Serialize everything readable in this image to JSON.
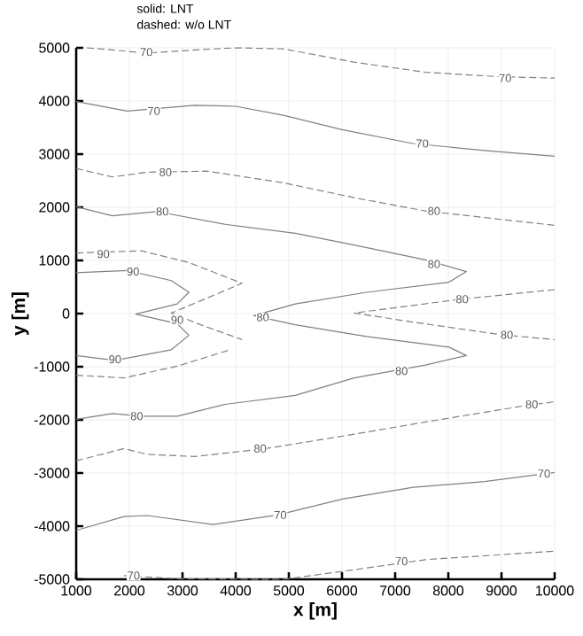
{
  "chart_data": {
    "type": "line",
    "xlabel": "x [m]",
    "ylabel": "y [m]",
    "xlim": [
      1000,
      10000
    ],
    "ylim": [
      -5000,
      5000
    ],
    "xticks": [
      1000,
      2000,
      3000,
      4000,
      5000,
      6000,
      7000,
      8000,
      9000,
      10000
    ],
    "yticks": [
      -5000,
      -4000,
      -3000,
      -2000,
      -1000,
      0,
      1000,
      2000,
      3000,
      4000,
      5000
    ],
    "grid": true,
    "marker": "none",
    "series": [
      {
        "color": "#808080",
        "line_style": "solid",
        "x": [
          1000,
          1960,
          3230,
          4000,
          4900,
          6000,
          7330,
          8670,
          10000
        ],
        "values": [
          3990,
          3810,
          3920,
          3900,
          3730,
          3460,
          3200,
          3070,
          2960
        ]
      },
      {
        "color": "#808080",
        "line_style": "dashed",
        "x": [
          1200,
          1680,
          2330,
          3230,
          4000,
          4900,
          6230,
          7570,
          8900,
          10000
        ],
        "values": [
          5000,
          4960,
          4900,
          4960,
          5000,
          4980,
          4730,
          4540,
          4460,
          4430
        ]
      },
      {
        "color": "#808080",
        "line_style": "dashed",
        "x": [
          1000,
          1680,
          2330,
          3460,
          4900,
          6230,
          7570,
          10000
        ],
        "values": [
          2730,
          2570,
          2660,
          2680,
          2460,
          2180,
          1930,
          1660
        ]
      },
      {
        "color": "#808080",
        "line_style": "solid",
        "x": [
          1000,
          1680,
          2510,
          3790,
          5120,
          6230,
          7570,
          8340,
          8010,
          6460,
          5120,
          4340,
          5120,
          6460,
          8010,
          8340,
          7570,
          6230,
          5120,
          3790,
          2900,
          2230,
          1680,
          1000
        ],
        "values": [
          2010,
          1840,
          1920,
          1680,
          1510,
          1290,
          1010,
          790,
          590,
          400,
          180,
          -40,
          -210,
          -430,
          -630,
          -790,
          -970,
          -1210,
          -1540,
          -1710,
          -1930,
          -1930,
          -1880,
          -1990
        ]
      },
      {
        "color": "#808080",
        "line_style": "solid",
        "x": [
          1000,
          1960,
          2790,
          3120,
          2900,
          2120,
          2900,
          3120,
          2790,
          1730,
          1000
        ],
        "values": [
          770,
          810,
          620,
          400,
          180,
          -10,
          -190,
          -410,
          -680,
          -880,
          -790
        ]
      },
      {
        "color": "#808080",
        "line_style": "dashed",
        "x": [
          1000,
          2230,
          3120,
          4120,
          3340,
          2790,
          3340,
          4120
        ],
        "values": [
          1140,
          1180,
          960,
          570,
          240,
          10,
          -210,
          -490
        ]
      },
      {
        "color": "#808080",
        "line_style": "dashed",
        "x": [
          1000,
          1900,
          2900,
          3900
        ],
        "values": [
          -1160,
          -1210,
          -990,
          -680
        ]
      },
      {
        "color": "#808080",
        "line_style": "dashed",
        "x": [
          10000,
          8230,
          6230,
          7330,
          9010,
          10000
        ],
        "values": [
          450,
          270,
          10,
          -160,
          -400,
          -490
        ]
      },
      {
        "color": "#808080",
        "line_style": "dashed",
        "x": [
          1000,
          1900,
          2340,
          3230,
          4570,
          6230,
          7570,
          9460,
          10000
        ],
        "values": [
          -2770,
          -2540,
          -2650,
          -2690,
          -2540,
          -2270,
          -2040,
          -1730,
          -1660
        ]
      },
      {
        "color": "#808080",
        "line_style": "solid",
        "x": [
          1000,
          1900,
          2340,
          3570,
          4790,
          6010,
          7340,
          8680,
          10000
        ],
        "values": [
          -4080,
          -3820,
          -3800,
          -3970,
          -3790,
          -3490,
          -3270,
          -3160,
          -2990
        ]
      },
      {
        "color": "#808080",
        "line_style": "dashed",
        "x": [
          1900,
          2900,
          4900,
          6230,
          7570,
          10000
        ],
        "values": [
          -4930,
          -4990,
          -5000,
          -4820,
          -4630,
          -4470
        ]
      }
    ],
    "annotations": [
      "solid: LNT",
      "dashed: w/o LNT",
      {
        "text": "70",
        "x": 2320,
        "y": 4920
      },
      {
        "text": "70",
        "x": 9070,
        "y": 4430
      },
      {
        "text": "70",
        "x": 2460,
        "y": 3810
      },
      {
        "text": "70",
        "x": 7510,
        "y": 3200
      },
      {
        "text": "80",
        "x": 2680,
        "y": 2660
      },
      {
        "text": "80",
        "x": 7730,
        "y": 1930
      },
      {
        "text": "80",
        "x": 2620,
        "y": 1920
      },
      {
        "text": "80",
        "x": 7730,
        "y": 930
      },
      {
        "text": "90",
        "x": 1510,
        "y": 1120
      },
      {
        "text": "90",
        "x": 2070,
        "y": 790
      },
      {
        "text": "90",
        "x": 2900,
        "y": -120
      },
      {
        "text": "80",
        "x": 4510,
        "y": -70
      },
      {
        "text": "80",
        "x": 8260,
        "y": 270
      },
      {
        "text": "80",
        "x": 9100,
        "y": -400
      },
      {
        "text": "90",
        "x": 1730,
        "y": -860
      },
      {
        "text": "80",
        "x": 7120,
        "y": -1080
      },
      {
        "text": "80",
        "x": 9570,
        "y": -1710
      },
      {
        "text": "80",
        "x": 2140,
        "y": -1930
      },
      {
        "text": "80",
        "x": 4460,
        "y": -2540
      },
      {
        "text": "70",
        "x": 9800,
        "y": -3010
      },
      {
        "text": "70",
        "x": 4840,
        "y": -3790
      },
      {
        "text": "70",
        "x": 7120,
        "y": -4660
      },
      {
        "text": "70",
        "x": 2080,
        "y": -4930
      }
    ]
  }
}
